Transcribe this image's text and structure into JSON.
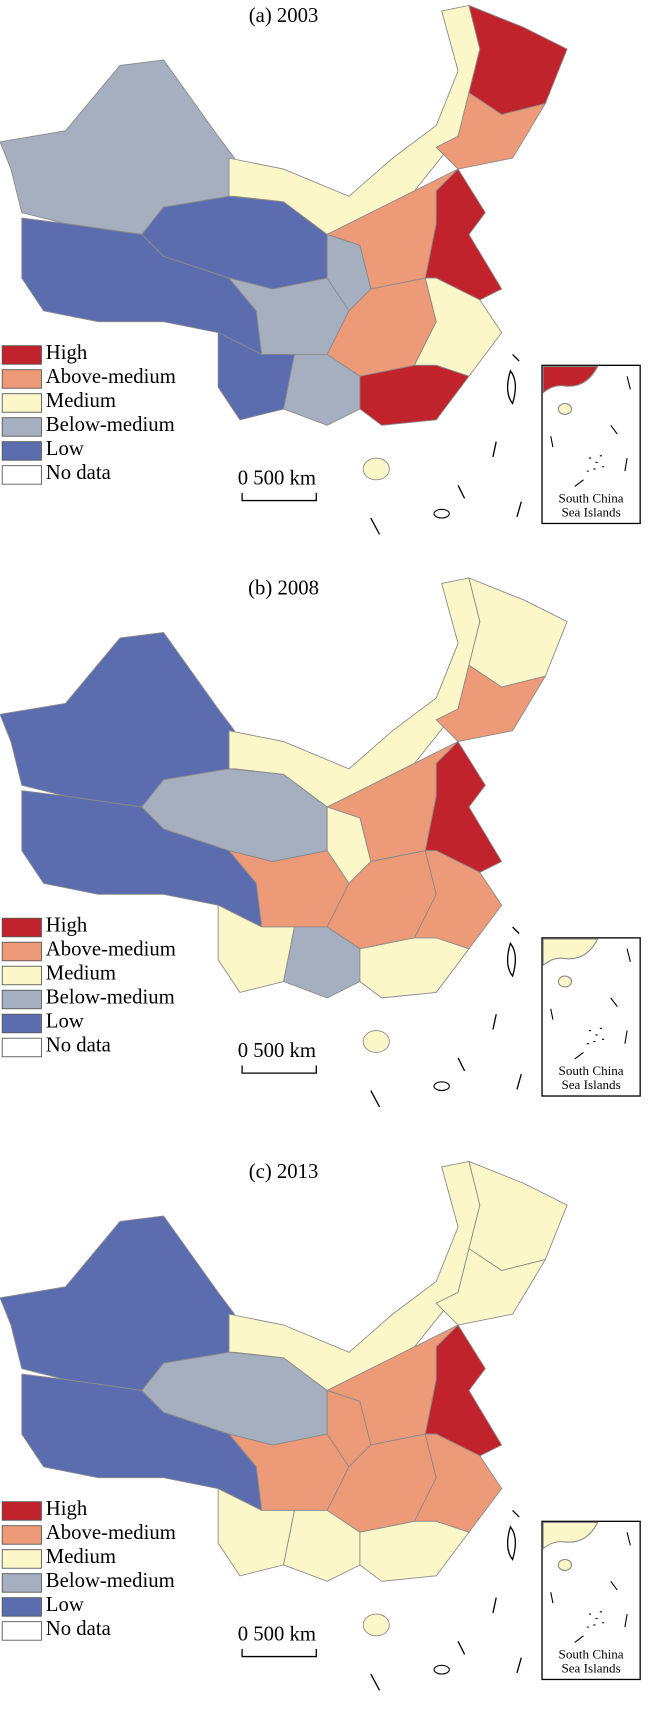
{
  "panels": [
    {
      "title": "(a) 2003"
    },
    {
      "title": "(b) 2008"
    },
    {
      "title": "(c) 2013"
    }
  ],
  "legend": [
    {
      "label": "High",
      "color": "#c0232b"
    },
    {
      "label": "Above-medium",
      "color": "#ec9a78"
    },
    {
      "label": "Medium",
      "color": "#fbf7c8"
    },
    {
      "label": "Below-medium",
      "color": "#a5afc0"
    },
    {
      "label": "Low",
      "color": "#5b6daf"
    },
    {
      "label": "No data",
      "color": "#ffffff"
    }
  ],
  "scale_bar": "0  500 km",
  "inset_label": [
    "South China",
    "Sea Islands"
  ]
}
